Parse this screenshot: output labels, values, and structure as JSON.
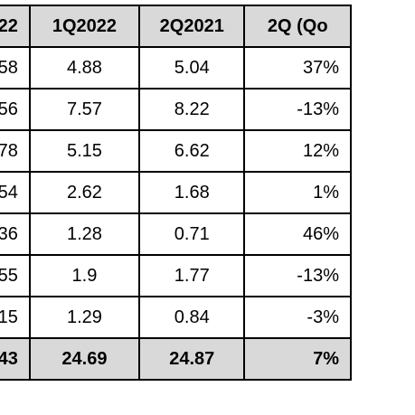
{
  "table": {
    "headers": [
      "022",
      "1Q2022",
      "2Q2021",
      "2Q (Qo"
    ],
    "rows": [
      [
        "58",
        "4.88",
        "5.04",
        "37%"
      ],
      [
        "56",
        "7.57",
        "8.22",
        "-13%"
      ],
      [
        "78",
        "5.15",
        "6.62",
        "12%"
      ],
      [
        "54",
        "2.62",
        "1.68",
        "1%"
      ],
      [
        "36",
        "1.28",
        "0.71",
        "46%"
      ],
      [
        "55",
        "1.9",
        "1.77",
        "-13%"
      ],
      [
        "15",
        "1.29",
        "0.84",
        "-3%"
      ]
    ],
    "total": [
      "43",
      "24.69",
      "24.87",
      "7%"
    ]
  },
  "colors": {
    "header_fill": "#d9d9d9",
    "border": "#000000"
  }
}
